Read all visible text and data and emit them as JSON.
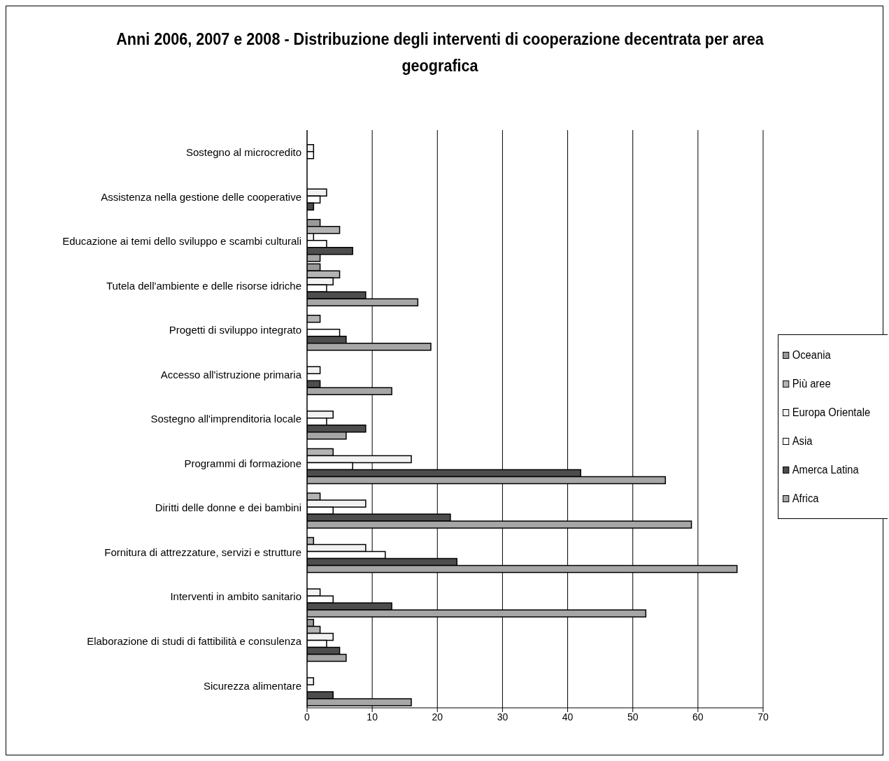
{
  "chart_data": {
    "type": "bar",
    "orientation": "horizontal",
    "title": "Anni 2006, 2007 e 2008 - Distribuzione degli interventi di cooperazione decentrata per area geografica",
    "categories": [
      "Sostegno al microcredito",
      "Assistenza nella gestione delle cooperative",
      "Educazione ai temi dello sviluppo e scambi culturali",
      "Tutela dell'ambiente e delle risorse idriche",
      "Progetti di sviluppo integrato",
      "Accesso all'istruzione primaria",
      "Sostegno all'imprenditoria locale",
      "Programmi di formazione",
      "Diritti delle donne e dei bambini",
      "Fornitura di attrezzature, servizi e strutture",
      "Interventi in ambito sanitario",
      "Elaborazione di studi di fattibilità e consulenza",
      "Sicurezza alimentare"
    ],
    "series": [
      {
        "name": "Oceania",
        "color": "#999999",
        "values": [
          null,
          null,
          2,
          2,
          null,
          null,
          null,
          null,
          null,
          null,
          null,
          1,
          null
        ]
      },
      {
        "name": "Più aree",
        "color": "#b3b3b3",
        "values": [
          null,
          null,
          5,
          5,
          2,
          null,
          null,
          4,
          2,
          1,
          null,
          2,
          null
        ]
      },
      {
        "name": "Europa Orientale",
        "color": "#f2f2f2",
        "values": [
          1,
          3,
          1,
          4,
          null,
          2,
          4,
          16,
          9,
          9,
          2,
          4,
          1
        ]
      },
      {
        "name": "Asia",
        "color": "#ffffff",
        "values": [
          1,
          2,
          3,
          3,
          5,
          null,
          3,
          7,
          4,
          12,
          4,
          3,
          null
        ]
      },
      {
        "name": "Amerca Latina",
        "color": "#4d4d4d",
        "values": [
          null,
          1,
          7,
          9,
          6,
          2,
          9,
          42,
          22,
          23,
          13,
          5,
          4
        ]
      },
      {
        "name": "Africa",
        "color": "#a6a6a6",
        "values": [
          null,
          null,
          2,
          17,
          19,
          13,
          6,
          55,
          59,
          66,
          52,
          6,
          16
        ]
      }
    ],
    "xlim": [
      0,
      70
    ],
    "xticks": [
      0,
      10,
      20,
      30,
      40,
      50,
      60,
      70
    ],
    "grid": "x",
    "legend": "right"
  }
}
